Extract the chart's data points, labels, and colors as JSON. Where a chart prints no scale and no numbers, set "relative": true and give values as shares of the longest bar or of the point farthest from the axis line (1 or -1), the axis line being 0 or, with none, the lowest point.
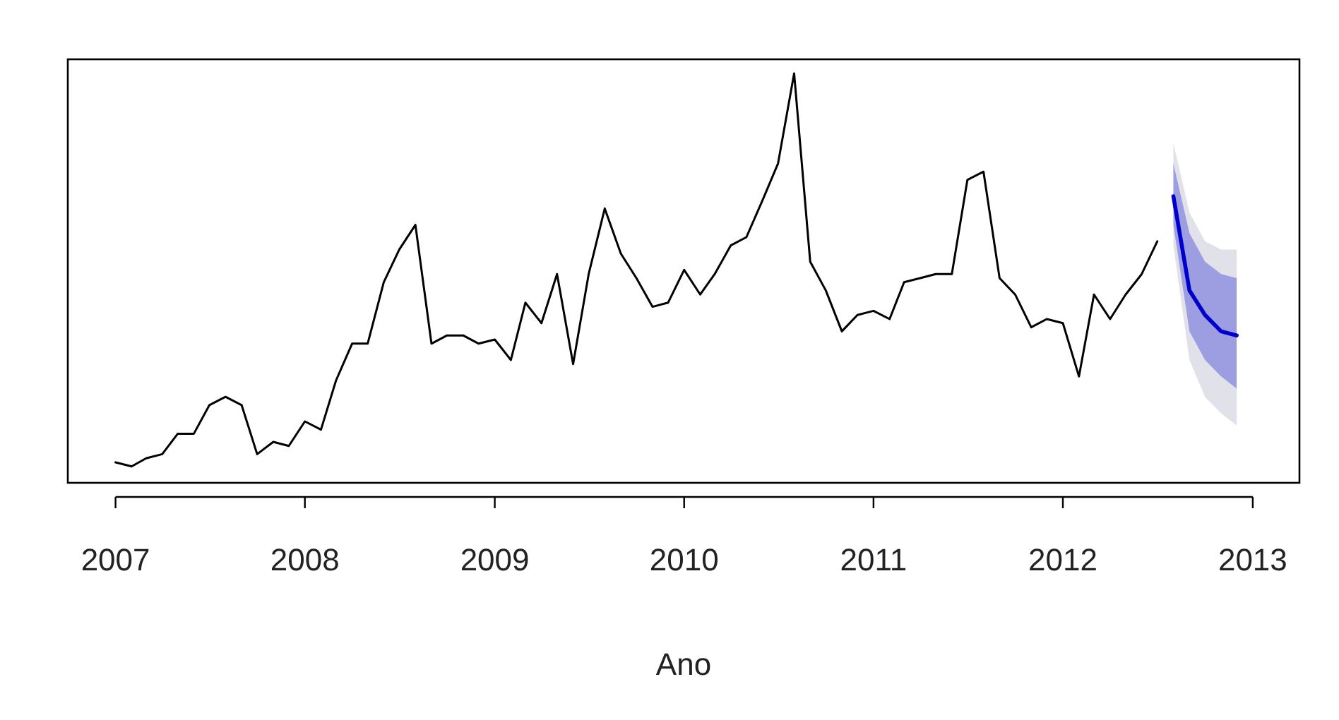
{
  "chart_data": {
    "type": "line",
    "relative": true,
    "xlabel": "Ano",
    "x": [
      "2007-01",
      "2007-02",
      "2007-03",
      "2007-04",
      "2007-05",
      "2007-06",
      "2007-07",
      "2007-08",
      "2007-09",
      "2007-10",
      "2007-11",
      "2007-12",
      "2008-01",
      "2008-02",
      "2008-03",
      "2008-04",
      "2008-05",
      "2008-06",
      "2008-07",
      "2008-08",
      "2008-09",
      "2008-10",
      "2008-11",
      "2008-12",
      "2009-01",
      "2009-02",
      "2009-03",
      "2009-04",
      "2009-05",
      "2009-06",
      "2009-07",
      "2009-08",
      "2009-09",
      "2009-10",
      "2009-11",
      "2009-12",
      "2010-01",
      "2010-02",
      "2010-03",
      "2010-04",
      "2010-05",
      "2010-06",
      "2010-07",
      "2010-08",
      "2010-09",
      "2010-10",
      "2010-11",
      "2010-12",
      "2011-01",
      "2011-02",
      "2011-03",
      "2011-04",
      "2011-05",
      "2011-06",
      "2011-07",
      "2011-08",
      "2011-09",
      "2011-10",
      "2011-11",
      "2011-12",
      "2012-01",
      "2012-02",
      "2012-03",
      "2012-04",
      "2012-05",
      "2012-06",
      "2012-07"
    ],
    "xlim": [
      "2006-10",
      "2013-04"
    ],
    "xticks": [
      {
        "value": "2007",
        "label": "2007"
      },
      {
        "value": "2008",
        "label": "2008"
      },
      {
        "value": "2009",
        "label": "2009"
      },
      {
        "value": "2010",
        "label": "2010"
      },
      {
        "value": "2011",
        "label": "2011"
      },
      {
        "value": "2012",
        "label": "2012"
      },
      {
        "value": "2013",
        "label": "2013"
      }
    ],
    "tick_labels": "x",
    "grid": false,
    "marker": "none",
    "line_style": "solid",
    "series": [
      {
        "color": "#000000",
        "values": [
          0.05,
          0.04,
          0.06,
          0.07,
          0.12,
          0.12,
          0.19,
          0.21,
          0.19,
          0.07,
          0.1,
          0.09,
          0.15,
          0.13,
          0.25,
          0.34,
          0.34,
          0.49,
          0.57,
          0.63,
          0.34,
          0.36,
          0.36,
          0.34,
          0.35,
          0.3,
          0.44,
          0.39,
          0.51,
          0.29,
          0.51,
          0.67,
          0.56,
          0.5,
          0.43,
          0.44,
          0.52,
          0.46,
          0.51,
          0.58,
          0.6,
          0.69,
          0.78,
          1.0,
          0.54,
          0.47,
          0.37,
          0.41,
          0.42,
          0.4,
          0.49,
          0.5,
          0.51,
          0.51,
          0.74,
          0.76,
          0.5,
          0.46,
          0.38,
          0.4,
          0.39,
          0.26,
          0.46,
          0.4,
          0.46,
          0.51,
          0.59
        ]
      },
      {
        "color": "#9a9ab8",
        "x": [
          "2012-08",
          "2012-09",
          "2012-10",
          "2012-11",
          "2012-12"
        ],
        "values": [
          null,
          null,
          null,
          null,
          null
        ],
        "lower": [
          0.58,
          0.3,
          0.21,
          0.17,
          0.14
        ],
        "upper": [
          0.83,
          0.66,
          0.59,
          0.57,
          0.57
        ]
      },
      {
        "color": "#0000cc",
        "x": [
          "2012-08",
          "2012-09",
          "2012-10",
          "2012-11",
          "2012-12"
        ],
        "values": [
          0.7,
          0.47,
          0.41,
          0.37,
          0.36
        ],
        "lower": [
          0.63,
          0.37,
          0.3,
          0.26,
          0.23
        ],
        "upper": [
          0.78,
          0.61,
          0.54,
          0.51,
          0.5
        ]
      }
    ]
  }
}
